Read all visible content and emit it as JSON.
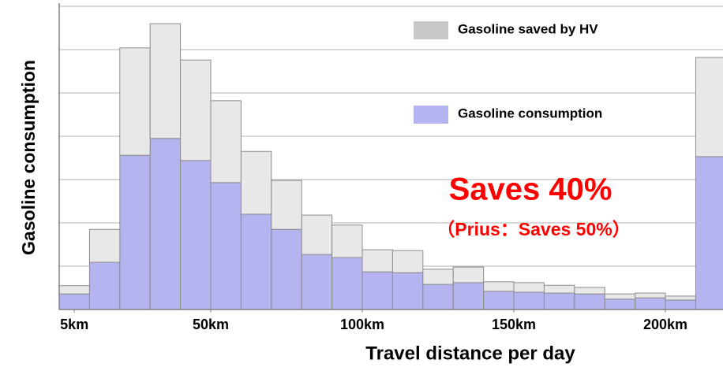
{
  "chart_data": {
    "type": "histogram",
    "xlabel": "Travel distance per day",
    "ylabel": "Gasoline consumption",
    "bins": [
      0,
      10,
      20,
      30,
      40,
      50,
      60,
      70,
      80,
      90,
      100,
      110,
      120,
      130,
      140,
      150,
      160,
      170,
      180,
      190,
      200,
      210,
      220
    ],
    "series": [
      {
        "name": "Gasoline consumption",
        "color": "#b4b4f0",
        "values": [
          0.36,
          1.09,
          3.56,
          3.95,
          3.44,
          2.93,
          2.2,
          1.85,
          1.27,
          1.2,
          0.87,
          0.85,
          0.58,
          0.62,
          0.42,
          0.4,
          0.38,
          0.36,
          0.24,
          0.27,
          0.22,
          3.53
        ]
      },
      {
        "name": "Gasoline saved by HV",
        "color": "#e8e8e8",
        "values": [
          0.19,
          0.76,
          2.48,
          2.65,
          2.32,
          1.89,
          1.45,
          1.13,
          0.91,
          0.75,
          0.51,
          0.51,
          0.35,
          0.36,
          0.22,
          0.22,
          0.18,
          0.15,
          0.12,
          0.11,
          0.09,
          2.29
        ]
      }
    ],
    "stacked": true,
    "xlim": [
      0,
      219
    ],
    "xticks": [
      {
        "value": 5,
        "label": "5km"
      },
      {
        "value": 50,
        "label": "50km"
      },
      {
        "value": 100,
        "label": "100km"
      },
      {
        "value": 150,
        "label": "150km"
      },
      {
        "value": 200,
        "label": "200km"
      }
    ],
    "ylim": [
      0,
      7
    ],
    "yticks": [
      0,
      1,
      2,
      3,
      4,
      5,
      6,
      7
    ],
    "grid": true,
    "legend": "upper right",
    "annotations": [
      "Saves 40%",
      "（Prius：Saves 50%）"
    ]
  }
}
